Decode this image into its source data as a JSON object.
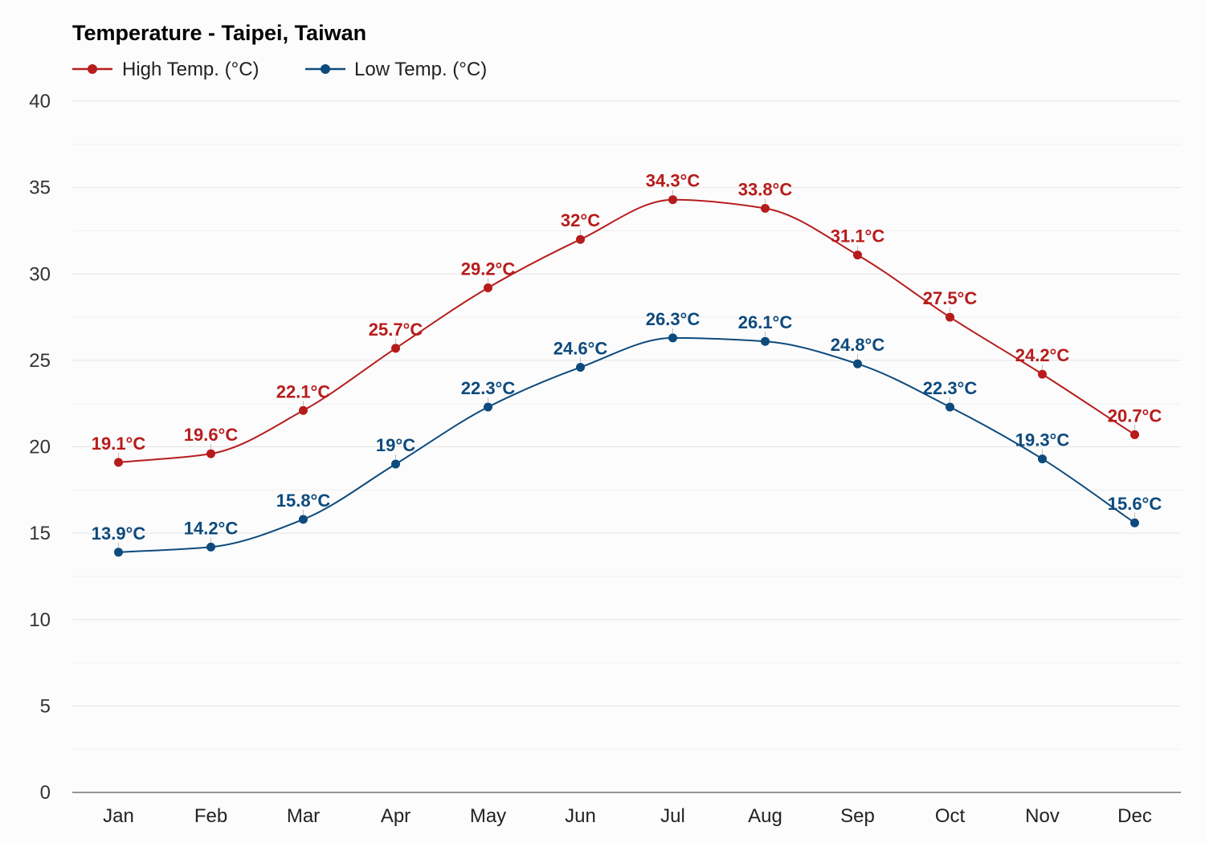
{
  "chart_data": {
    "type": "line",
    "title": "Temperature - Taipei, Taiwan",
    "xlabel": "",
    "ylabel": "",
    "categories": [
      "Jan",
      "Feb",
      "Mar",
      "Apr",
      "May",
      "Jun",
      "Jul",
      "Aug",
      "Sep",
      "Oct",
      "Nov",
      "Dec"
    ],
    "ylim": [
      0,
      40
    ],
    "yticks": [
      "0",
      "5",
      "10",
      "15",
      "20",
      "25",
      "30",
      "35",
      "40"
    ],
    "grid": true,
    "legend_position": "top-left",
    "unit": "°C",
    "series": [
      {
        "name": "High Temp. (°C)",
        "color": "#b71c1c",
        "values": [
          19.1,
          19.6,
          22.1,
          25.7,
          29.2,
          32,
          34.3,
          33.8,
          31.1,
          27.5,
          24.2,
          20.7
        ],
        "labels": [
          "19.1°C",
          "19.6°C",
          "22.1°C",
          "25.7°C",
          "29.2°C",
          "32°C",
          "34.3°C",
          "33.8°C",
          "31.1°C",
          "27.5°C",
          "24.2°C",
          "20.7°C"
        ]
      },
      {
        "name": "Low Temp. (°C)",
        "color": "#0d4a7d",
        "values": [
          13.9,
          14.2,
          15.8,
          19,
          22.3,
          24.6,
          26.3,
          26.1,
          24.8,
          22.3,
          19.3,
          15.6
        ],
        "labels": [
          "13.9°C",
          "14.2°C",
          "15.8°C",
          "19°C",
          "22.3°C",
          "24.6°C",
          "26.3°C",
          "26.1°C",
          "24.8°C",
          "22.3°C",
          "19.3°C",
          "15.6°C"
        ]
      }
    ]
  }
}
